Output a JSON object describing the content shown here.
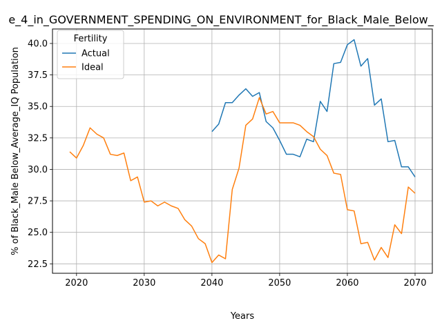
{
  "chart_data": {
    "type": "line",
    "title": "e_4_in_GOVERNMENT_SPENDING_ON_ENVIRONMENT_for_Black_Male_Below_",
    "xlabel": "Years",
    "ylabel": "% of Black_Male Below_Average_IQ Population",
    "xlim": [
      2016.45,
      2072.55
    ],
    "ylim": [
      21.75,
      41.15
    ],
    "xticks": [
      2020,
      2030,
      2040,
      2050,
      2060,
      2070
    ],
    "yticks": [
      22.5,
      25.0,
      27.5,
      30.0,
      32.5,
      35.0,
      37.5,
      40.0
    ],
    "xtick_labels": [
      "2020",
      "2030",
      "2040",
      "2050",
      "2060",
      "2070"
    ],
    "ytick_labels": [
      "22.5",
      "25.0",
      "27.5",
      "30.0",
      "32.5",
      "35.0",
      "37.5",
      "40.0"
    ],
    "grid": true,
    "legend": {
      "title": "Fertility",
      "placement": "top-left"
    },
    "series": [
      {
        "name": "Actual",
        "color": "#1f77b4",
        "x": [
          2040,
          2041,
          2042,
          2043,
          2044,
          2045,
          2046,
          2047,
          2048,
          2049,
          2050,
          2051,
          2052,
          2053,
          2054,
          2055,
          2056,
          2057,
          2058,
          2059,
          2060,
          2061,
          2062,
          2063,
          2064,
          2065,
          2066,
          2067,
          2068,
          2069,
          2070
        ],
        "values": [
          33.0,
          33.6,
          35.3,
          35.3,
          35.9,
          36.4,
          35.8,
          36.1,
          33.8,
          33.3,
          32.3,
          31.2,
          31.2,
          31.0,
          32.4,
          32.2,
          35.4,
          34.6,
          38.4,
          38.5,
          39.9,
          40.3,
          38.2,
          38.8,
          35.1,
          35.6,
          32.2,
          32.3,
          30.2,
          30.2,
          29.4
        ]
      },
      {
        "name": "Ideal",
        "color": "#ff7f0e",
        "x": [
          2019,
          2020,
          2021,
          2022,
          2023,
          2024,
          2025,
          2026,
          2027,
          2028,
          2029,
          2030,
          2031,
          2032,
          2033,
          2034,
          2035,
          2036,
          2037,
          2038,
          2039,
          2040,
          2041,
          2042,
          2043,
          2044,
          2045,
          2046,
          2047,
          2048,
          2049,
          2050,
          2051,
          2052,
          2053,
          2054,
          2055,
          2056,
          2057,
          2058,
          2059,
          2060,
          2061,
          2062,
          2063,
          2064,
          2065,
          2066,
          2067,
          2068,
          2069,
          2070
        ],
        "values": [
          31.4,
          30.9,
          31.9,
          33.3,
          32.8,
          32.5,
          31.2,
          31.1,
          31.3,
          29.1,
          29.4,
          27.4,
          27.5,
          27.1,
          27.4,
          27.1,
          26.9,
          26.0,
          25.5,
          24.5,
          24.1,
          22.6,
          23.2,
          22.9,
          28.4,
          30.1,
          33.5,
          34.0,
          35.7,
          34.4,
          34.6,
          33.7,
          33.7,
          33.7,
          33.5,
          33.0,
          32.6,
          31.6,
          31.1,
          29.7,
          29.6,
          26.8,
          26.7,
          24.1,
          24.2,
          22.8,
          23.8,
          23.0,
          25.6,
          24.9,
          28.6,
          28.1
        ]
      }
    ]
  }
}
